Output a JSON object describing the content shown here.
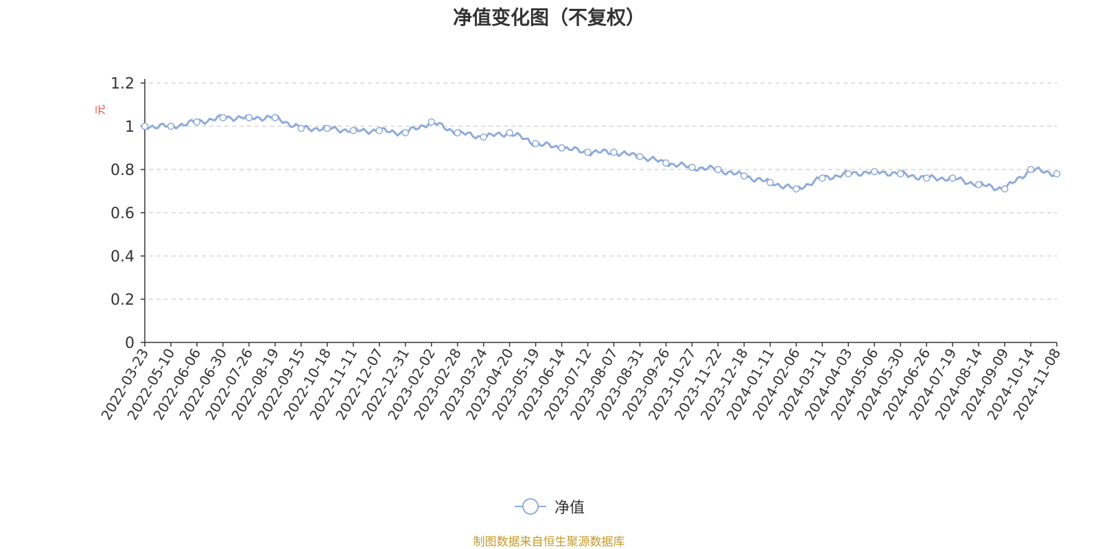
{
  "title": "净值变化图（不复权）",
  "source": "制图数据来自恒生聚源数据库",
  "colors": {
    "line": "#8eaadb",
    "ylabel": "#e8412f",
    "source": "#c59a2a",
    "text": "#333333",
    "grid": "#cccccc"
  },
  "chart_data": {
    "type": "line",
    "title": "净值变化图（不复权）",
    "xlabel": "",
    "ylabel": "元",
    "ylim": [
      0,
      1.2
    ],
    "yticks": [
      "0",
      "0.2",
      "0.4",
      "0.6",
      "0.8",
      "1",
      "1.2"
    ],
    "grid": true,
    "legend": "bottom-center",
    "x": [
      "2022-03-23",
      "2022-05-10",
      "2022-06-06",
      "2022-06-30",
      "2022-07-26",
      "2022-08-19",
      "2022-09-15",
      "2022-10-18",
      "2022-11-11",
      "2022-12-07",
      "2022-12-31",
      "2023-02-02",
      "2023-02-28",
      "2023-03-24",
      "2023-04-20",
      "2023-05-19",
      "2023-06-14",
      "2023-07-12",
      "2023-08-07",
      "2023-08-31",
      "2023-09-26",
      "2023-10-27",
      "2023-11-22",
      "2023-12-18",
      "2024-01-11",
      "2024-02-06",
      "2024-03-11",
      "2024-04-03",
      "2024-05-06",
      "2024-05-30",
      "2024-06-26",
      "2024-07-19",
      "2024-08-14",
      "2024-09-09",
      "2024-10-14",
      "2024-11-08"
    ],
    "series": [
      {
        "name": "净值",
        "values": [
          1.0,
          1.0,
          1.02,
          1.04,
          1.04,
          1.04,
          0.99,
          0.99,
          0.98,
          0.98,
          0.97,
          1.02,
          0.97,
          0.95,
          0.97,
          0.92,
          0.9,
          0.88,
          0.88,
          0.86,
          0.83,
          0.81,
          0.8,
          0.77,
          0.74,
          0.71,
          0.76,
          0.78,
          0.79,
          0.78,
          0.76,
          0.76,
          0.73,
          0.71,
          0.8,
          0.78
        ]
      }
    ]
  }
}
